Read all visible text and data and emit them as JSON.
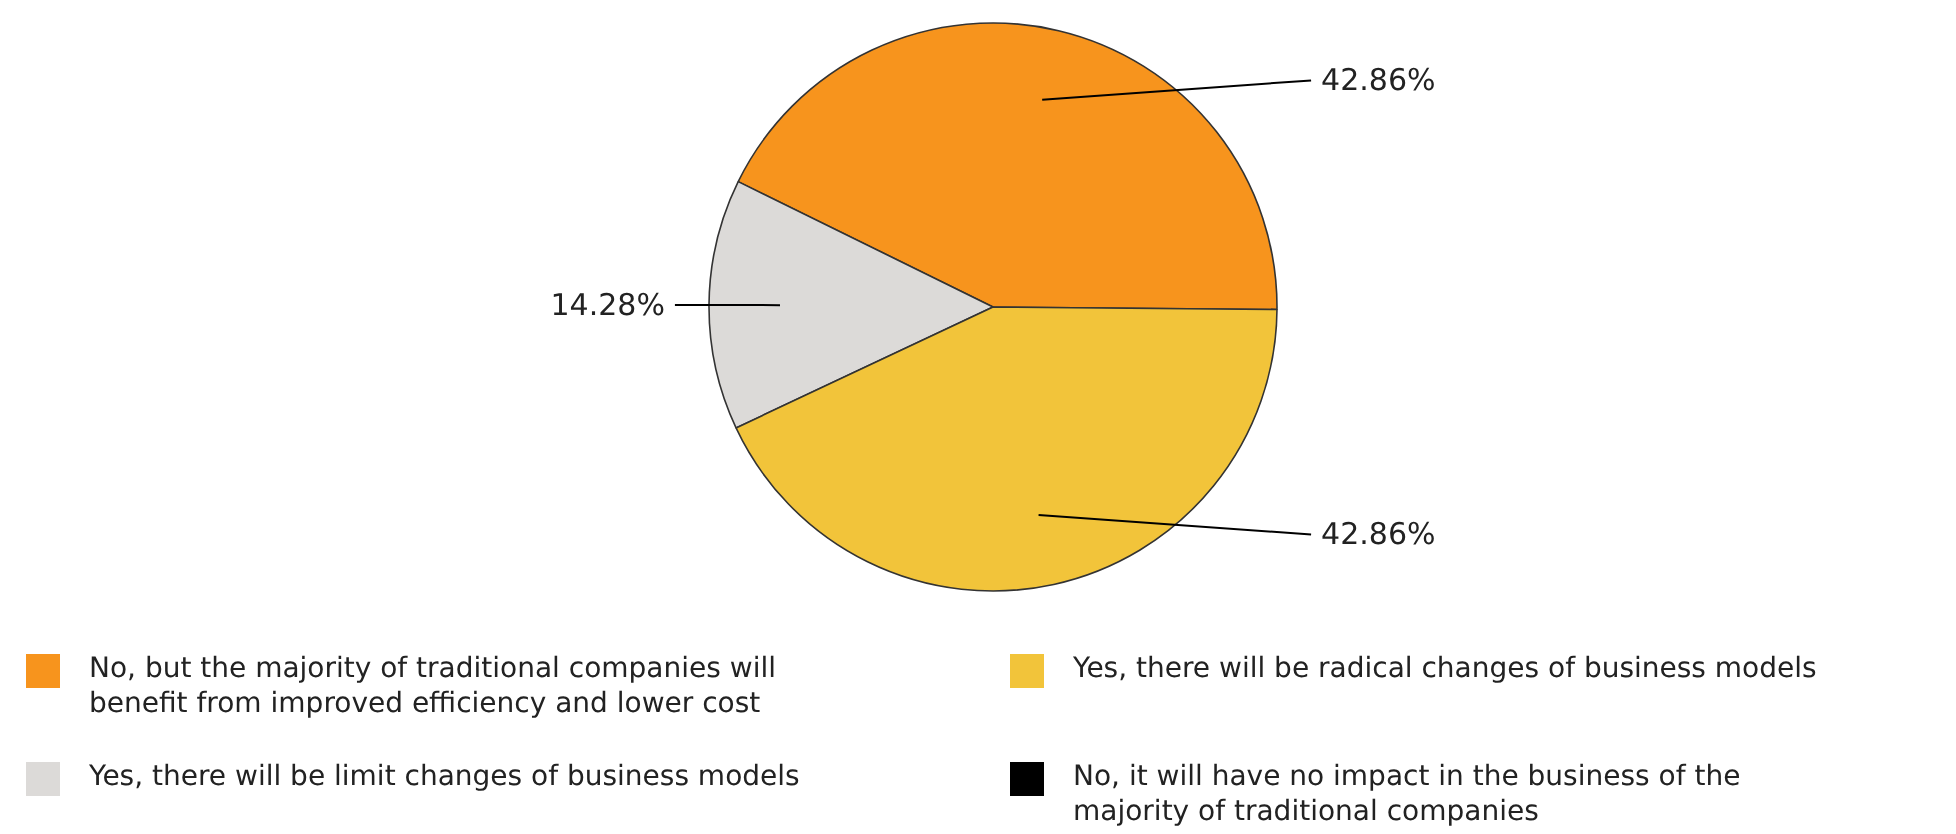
{
  "chart_data": {
    "type": "pie",
    "categories": [
      "No, but the majority of traditional companies will benefit from improved efficiency and lower cost",
      "Yes, there will be limit changes of business models",
      "Yes, there will be radical changes of business models",
      "No, it will have no impact in the business of the majority of traditional companies"
    ],
    "values": [
      42.86,
      14.28,
      42.86,
      0
    ],
    "value_labels": [
      "42.86%",
      "14.28%",
      "42.86%",
      null
    ],
    "colors": [
      "#f7941d",
      "#dcdad8",
      "#f2c43a",
      "#000000"
    ],
    "legend": "bottom"
  }
}
